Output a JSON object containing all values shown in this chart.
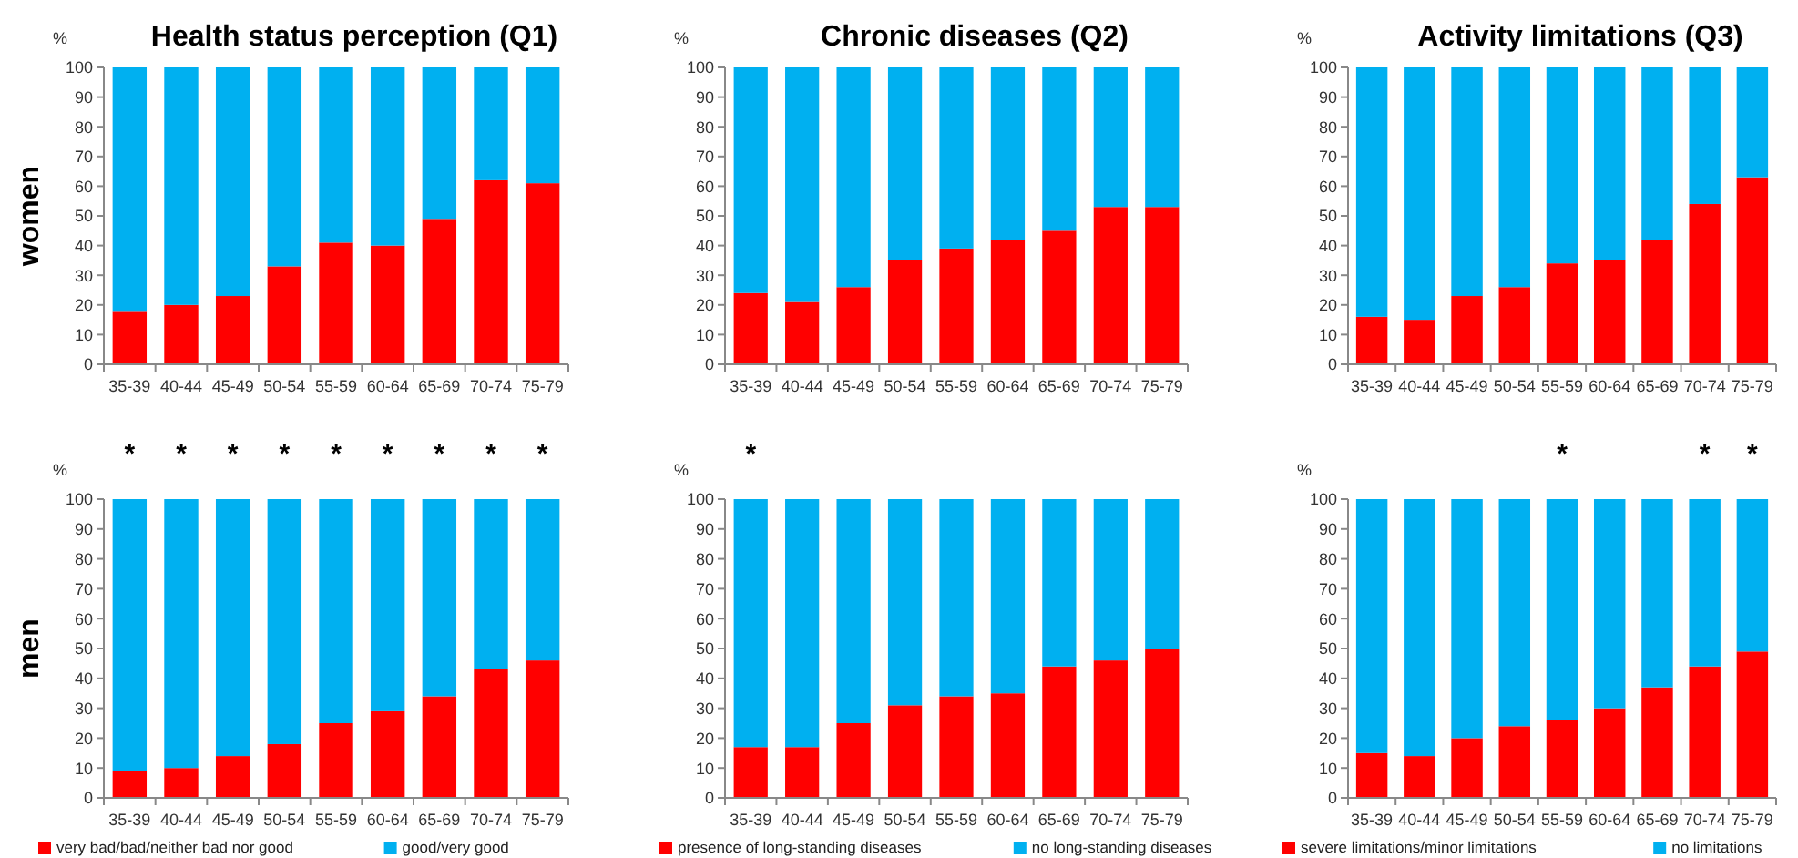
{
  "chart_data": [
    {
      "type": "bar",
      "title": "Health status perception (Q1)",
      "ylabel": "%",
      "annotations": [
        "women"
      ],
      "categories": [
        "35-39",
        "40-44",
        "45-49",
        "50-54",
        "55-59",
        "60-64",
        "65-69",
        "70-74",
        "75-79"
      ],
      "stacked": true,
      "ylim": [
        0,
        100
      ],
      "yticks": [
        0,
        10,
        20,
        30,
        40,
        50,
        60,
        70,
        80,
        90,
        100
      ],
      "grid": false,
      "legend": false,
      "series": [
        {
          "color": "#ff0000",
          "values": [
            18,
            20,
            23,
            33,
            41,
            40,
            49,
            62,
            61
          ]
        },
        {
          "color": "#00b0f0",
          "values": [
            82,
            80,
            77,
            67,
            59,
            60,
            51,
            38,
            39
          ]
        }
      ]
    },
    {
      "type": "bar",
      "title": "Chronic diseases (Q2)",
      "ylabel": "%",
      "categories": [
        "35-39",
        "40-44",
        "45-49",
        "50-54",
        "55-59",
        "60-64",
        "65-69",
        "70-74",
        "75-79"
      ],
      "stacked": true,
      "ylim": [
        0,
        100
      ],
      "yticks": [
        0,
        10,
        20,
        30,
        40,
        50,
        60,
        70,
        80,
        90,
        100
      ],
      "grid": false,
      "legend": false,
      "series": [
        {
          "color": "#ff0000",
          "values": [
            24,
            21,
            26,
            35,
            39,
            42,
            45,
            53,
            53
          ]
        },
        {
          "color": "#00b0f0",
          "values": [
            76,
            79,
            74,
            65,
            61,
            58,
            55,
            47,
            47
          ]
        }
      ]
    },
    {
      "type": "bar",
      "title": "Activity limitations (Q3)",
      "ylabel": "%",
      "categories": [
        "35-39",
        "40-44",
        "45-49",
        "50-54",
        "55-59",
        "60-64",
        "65-69",
        "70-74",
        "75-79"
      ],
      "stacked": true,
      "ylim": [
        0,
        100
      ],
      "yticks": [
        0,
        10,
        20,
        30,
        40,
        50,
        60,
        70,
        80,
        90,
        100
      ],
      "grid": false,
      "legend": false,
      "series": [
        {
          "color": "#ff0000",
          "values": [
            16,
            15,
            23,
            26,
            34,
            35,
            42,
            54,
            63
          ]
        },
        {
          "color": "#00b0f0",
          "values": [
            84,
            85,
            77,
            74,
            66,
            65,
            58,
            46,
            37
          ]
        }
      ]
    },
    {
      "type": "bar",
      "ylabel": "%",
      "annotations": [
        "men",
        {
          "text": "*",
          "x": "35-39",
          "y": 100
        },
        {
          "text": "*",
          "x": "40-44",
          "y": 100
        },
        {
          "text": "*",
          "x": "45-49",
          "y": 100
        },
        {
          "text": "*",
          "x": "50-54",
          "y": 100
        },
        {
          "text": "*",
          "x": "55-59",
          "y": 100
        },
        {
          "text": "*",
          "x": "60-64",
          "y": 100
        },
        {
          "text": "*",
          "x": "65-69",
          "y": 100
        },
        {
          "text": "*",
          "x": "70-74",
          "y": 100
        },
        {
          "text": "*",
          "x": "75-79",
          "y": 100
        }
      ],
      "categories": [
        "35-39",
        "40-44",
        "45-49",
        "50-54",
        "55-59",
        "60-64",
        "65-69",
        "70-74",
        "75-79"
      ],
      "stacked": true,
      "ylim": [
        0,
        100
      ],
      "yticks": [
        0,
        10,
        20,
        30,
        40,
        50,
        60,
        70,
        80,
        90,
        100
      ],
      "grid": false,
      "legend": "bottom",
      "series": [
        {
          "name": "very bad/bad/neither bad nor good",
          "color": "#ff0000",
          "values": [
            9,
            10,
            14,
            18,
            25,
            29,
            34,
            43,
            46
          ]
        },
        {
          "name": "good/very good",
          "color": "#00b0f0",
          "values": [
            91,
            90,
            86,
            82,
            75,
            71,
            66,
            57,
            54
          ]
        }
      ]
    },
    {
      "type": "bar",
      "ylabel": "%",
      "annotations": [
        {
          "text": "*",
          "x": "35-39",
          "y": 100
        }
      ],
      "categories": [
        "35-39",
        "40-44",
        "45-49",
        "50-54",
        "55-59",
        "60-64",
        "65-69",
        "70-74",
        "75-79"
      ],
      "stacked": true,
      "ylim": [
        0,
        100
      ],
      "yticks": [
        0,
        10,
        20,
        30,
        40,
        50,
        60,
        70,
        80,
        90,
        100
      ],
      "grid": false,
      "legend": "bottom",
      "series": [
        {
          "name": "presence of long-standing diseases",
          "color": "#ff0000",
          "values": [
            17,
            17,
            25,
            31,
            34,
            35,
            44,
            46,
            50
          ]
        },
        {
          "name": "no long-standing diseases",
          "color": "#00b0f0",
          "values": [
            83,
            83,
            75,
            69,
            66,
            65,
            56,
            54,
            50
          ]
        }
      ]
    },
    {
      "type": "bar",
      "ylabel": "%",
      "annotations": [
        {
          "text": "*",
          "x": "55-59",
          "y": 100
        },
        {
          "text": "*",
          "x": "70-74",
          "y": 100
        },
        {
          "text": "*",
          "x": "75-79",
          "y": 100
        }
      ],
      "categories": [
        "35-39",
        "40-44",
        "45-49",
        "50-54",
        "55-59",
        "60-64",
        "65-69",
        "70-74",
        "75-79"
      ],
      "stacked": true,
      "ylim": [
        0,
        100
      ],
      "yticks": [
        0,
        10,
        20,
        30,
        40,
        50,
        60,
        70,
        80,
        90,
        100
      ],
      "grid": false,
      "legend": "bottom",
      "series": [
        {
          "name": "severe limitations/minor limitations",
          "color": "#ff0000",
          "values": [
            15,
            14,
            20,
            24,
            26,
            30,
            37,
            44,
            49
          ]
        },
        {
          "name": "no limitations",
          "color": "#00b0f0",
          "values": [
            85,
            86,
            80,
            76,
            74,
            70,
            63,
            56,
            51
          ]
        }
      ]
    }
  ]
}
